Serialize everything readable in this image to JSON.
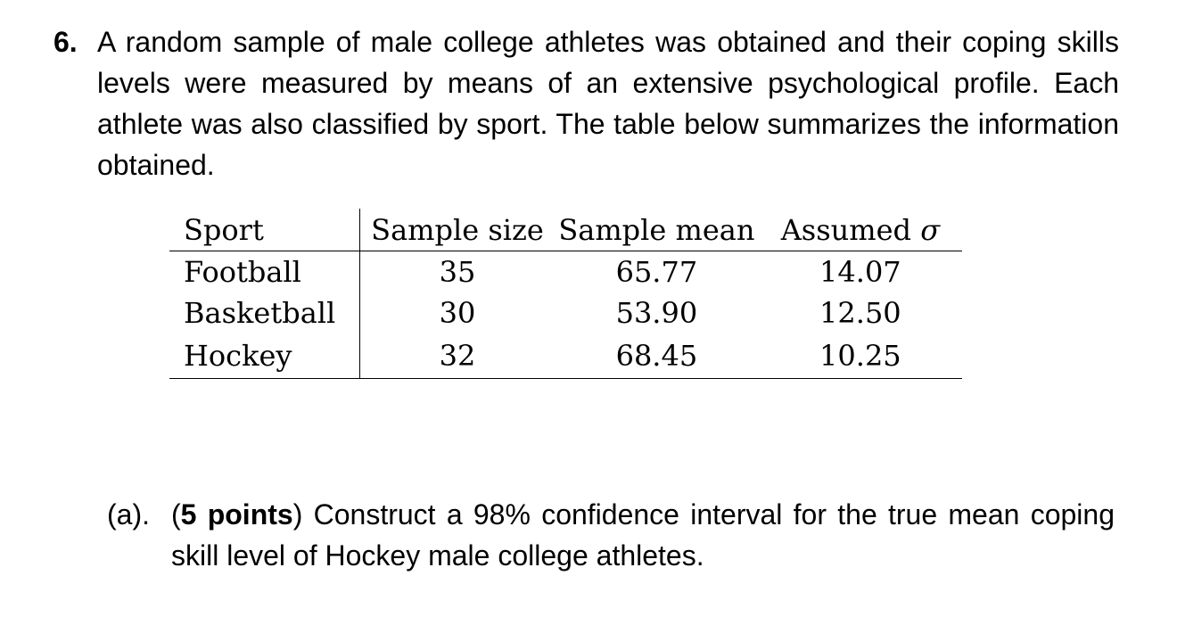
{
  "problem": {
    "number": "6.",
    "text": "A random sample of male college athletes was obtained and their coping skills levels were measured by means of an extensive psychological profile. Each athlete was also classified by sport. The table below summarizes the information obtained."
  },
  "table": {
    "headers": {
      "sport": "Sport",
      "sample_size": "Sample size",
      "sample_mean": "Sample mean",
      "assumed_sigma_prefix": "Assumed",
      "sigma_symbol": "σ"
    },
    "rows": [
      {
        "sport": "Football",
        "sample_size": "35",
        "sample_mean": "65.77",
        "assumed_sigma": "14.07"
      },
      {
        "sport": "Basketball",
        "sample_size": "30",
        "sample_mean": "53.90",
        "assumed_sigma": "12.50"
      },
      {
        "sport": "Hockey",
        "sample_size": "32",
        "sample_mean": "68.45",
        "assumed_sigma": "10.25"
      }
    ]
  },
  "part_a": {
    "label": "(a).",
    "points_open": "(",
    "points": "5 points",
    "points_close": ")",
    "text": "Construct a 98% confidence interval for the true mean coping skill level of Hockey male college athletes."
  }
}
